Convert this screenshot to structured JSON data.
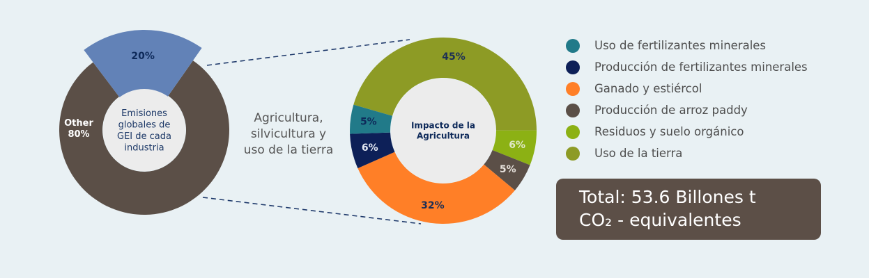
{
  "chart_data": [
    {
      "type": "pie",
      "donut": true,
      "center_label": [
        "Emisiones",
        "globales de",
        "GEI de cada",
        "industria"
      ],
      "slices": [
        {
          "label": "Other",
          "value": 80,
          "display": "80%",
          "color": "#5b4f47",
          "label_color": "#ffffff"
        },
        {
          "label": "Agricultura, silvicultura y uso de la tierra",
          "value": 20,
          "display": "20%",
          "color": "#6282b7",
          "label_color": "#0e2a5a"
        }
      ]
    },
    {
      "type": "pie",
      "donut": true,
      "center_label": [
        "Impacto de la",
        "Agricultura"
      ],
      "slices": [
        {
          "label": "Uso de la tierra",
          "value": 45,
          "display": "45%",
          "color": "#8d9b25",
          "label_color": "#1c2f55"
        },
        {
          "label": "Residuos y suelo orgánico",
          "value": 6,
          "display": "6%",
          "color": "#8cb114",
          "label_color": "#dfe8c7"
        },
        {
          "label": "Producción de arroz paddy",
          "value": 5,
          "display": "5%",
          "color": "#5b4f47",
          "label_color": "#e6e1dc"
        },
        {
          "label": "Ganado y estiércol",
          "value": 32,
          "display": "32%",
          "color": "#ff7f27",
          "label_color": "#1c2f55"
        },
        {
          "label": "Producción de fertilizantes minerales",
          "value": 6,
          "display": "6%",
          "color": "#0d2058",
          "label_color": "#e3e8f2"
        },
        {
          "label": "Uso de fertilizantes minerales",
          "value": 5,
          "display": "5%",
          "color": "#217a89",
          "label_color": "#0e2a5a"
        }
      ]
    }
  ],
  "link_label": [
    "Agricultura,",
    "silvicultura y",
    "uso de la tierra"
  ],
  "legend": [
    {
      "label": "Uso de fertilizantes minerales",
      "color": "#217a89"
    },
    {
      "label": "Producción de fertilizantes minerales",
      "color": "#0d2058"
    },
    {
      "label": "Ganado y estiércol",
      "color": "#ff7f27"
    },
    {
      "label": "Producción de arroz paddy",
      "color": "#5b4f47"
    },
    {
      "label": "Residuos y suelo orgánico",
      "color": "#8cb114"
    },
    {
      "label": "Uso de la tierra",
      "color": "#8d9b25"
    }
  ],
  "total": {
    "line1": "Total: 53.6 Billones t",
    "line2": "CO₂ - equivalentes"
  }
}
